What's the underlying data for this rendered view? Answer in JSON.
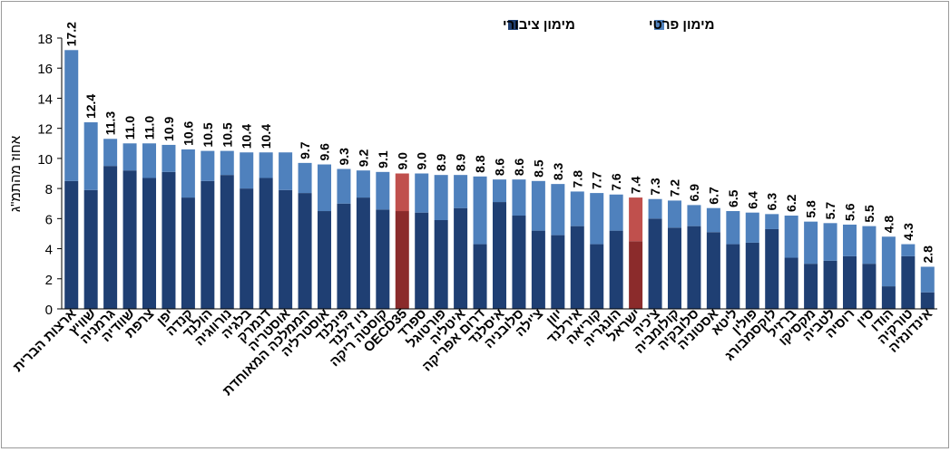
{
  "chart_data": {
    "type": "bar",
    "stacked": true,
    "title": "",
    "xlabel": "",
    "ylabel": "אחוז מהתמ\"ג",
    "ylim": [
      0,
      18
    ],
    "yticks": [
      "0",
      "2",
      "4",
      "6",
      "8",
      "10",
      "12",
      "14",
      "16",
      "18"
    ],
    "grid": false,
    "legend_position": "top",
    "categories": [
      "ארצות הברית",
      "שוויץ",
      "גרמניה",
      "שוודיה",
      "צרפת",
      "יפן",
      "קנדה",
      "הולנד",
      "נורווגיה",
      "בלגיה",
      "דנמרק",
      "אוסטריה",
      "הממלכה המאוחדת",
      "אוסטרליה",
      "פינלנד",
      "ניו זילנד",
      "קוסטה ריקה",
      "OECD35",
      "ספרד",
      "פורטוגל",
      "איטליה",
      "דרום אפריקה",
      "איסלנד",
      "סלובניה",
      "צ'ילה",
      "יוון",
      "אירלנד",
      "קוריאה",
      "הונגריה",
      "ישראל",
      "צ'כיה",
      "קולומביה",
      "סלובקיה",
      "אסטוניה",
      "ליטא",
      "פולין",
      "לוקסמבורג",
      "ברזיל",
      "מקסיקו",
      "לטביה",
      "רוסיה",
      "סין",
      "הודו",
      "טורקיה",
      "אינדונזיה"
    ],
    "totals": [
      17.2,
      12.4,
      11.3,
      11.0,
      11.0,
      10.9,
      10.6,
      10.5,
      10.5,
      10.4,
      10.4,
      10.4,
      9.7,
      9.6,
      9.3,
      9.2,
      9.1,
      9.0,
      9.0,
      8.9,
      8.9,
      8.8,
      8.6,
      8.6,
      8.5,
      8.3,
      7.8,
      7.7,
      7.6,
      7.4,
      7.3,
      7.2,
      6.9,
      6.7,
      6.5,
      6.4,
      6.3,
      6.2,
      5.8,
      5.7,
      5.6,
      5.5,
      4.8,
      4.3,
      2.8
    ],
    "total_labels": [
      "17.2",
      "12.4",
      "11.3",
      "11.0",
      "11.0",
      "10.9",
      "10.6",
      "10.5",
      "10.5",
      "10.4",
      "10.4",
      "",
      "9.7",
      "9.6",
      "9.3",
      "9.2",
      "9.1",
      "9.0",
      "9.0",
      "8.9",
      "8.9",
      "8.8",
      "8.6",
      "8.6",
      "8.5",
      "8.3",
      "7.8",
      "7.7",
      "7.6",
      "7.4",
      "7.3",
      "7.2",
      "6.9",
      "6.7",
      "6.5",
      "6.4",
      "6.3",
      "6.2",
      "5.8",
      "5.7",
      "5.6",
      "5.5",
      "4.8",
      "4.3",
      "2.8"
    ],
    "series": [
      {
        "name": "מימון ציבורי",
        "values": [
          8.5,
          7.9,
          9.5,
          9.2,
          8.7,
          9.1,
          7.4,
          8.5,
          8.9,
          8.0,
          8.7,
          7.9,
          7.7,
          6.5,
          7.0,
          7.4,
          6.6,
          6.5,
          6.4,
          5.9,
          6.7,
          4.3,
          7.1,
          6.2,
          5.2,
          4.9,
          5.5,
          4.3,
          5.2,
          4.5,
          6.0,
          5.4,
          5.5,
          5.1,
          4.3,
          4.4,
          5.3,
          3.4,
          3.0,
          3.2,
          3.5,
          3.0,
          1.5,
          3.5,
          1.1
        ],
        "color": "#1f3f73"
      },
      {
        "name": "מימון פרטי",
        "values": [
          8.7,
          4.5,
          1.8,
          1.8,
          2.3,
          1.8,
          3.2,
          2.0,
          1.6,
          2.4,
          1.7,
          2.5,
          2.0,
          3.1,
          2.3,
          1.8,
          2.5,
          2.5,
          2.6,
          3.0,
          2.2,
          4.5,
          1.5,
          2.4,
          3.3,
          3.4,
          2.3,
          3.4,
          2.4,
          2.9,
          1.3,
          1.8,
          1.4,
          1.6,
          2.2,
          2.0,
          1.0,
          2.8,
          2.8,
          2.5,
          2.1,
          2.5,
          3.3,
          0.8,
          1.7
        ],
        "color": "#4f81bd"
      }
    ],
    "highlight": {
      "categories": [
        "OECD35",
        "ישראל"
      ],
      "public_color": "#8b2b2b",
      "private_color": "#c0504d"
    }
  }
}
